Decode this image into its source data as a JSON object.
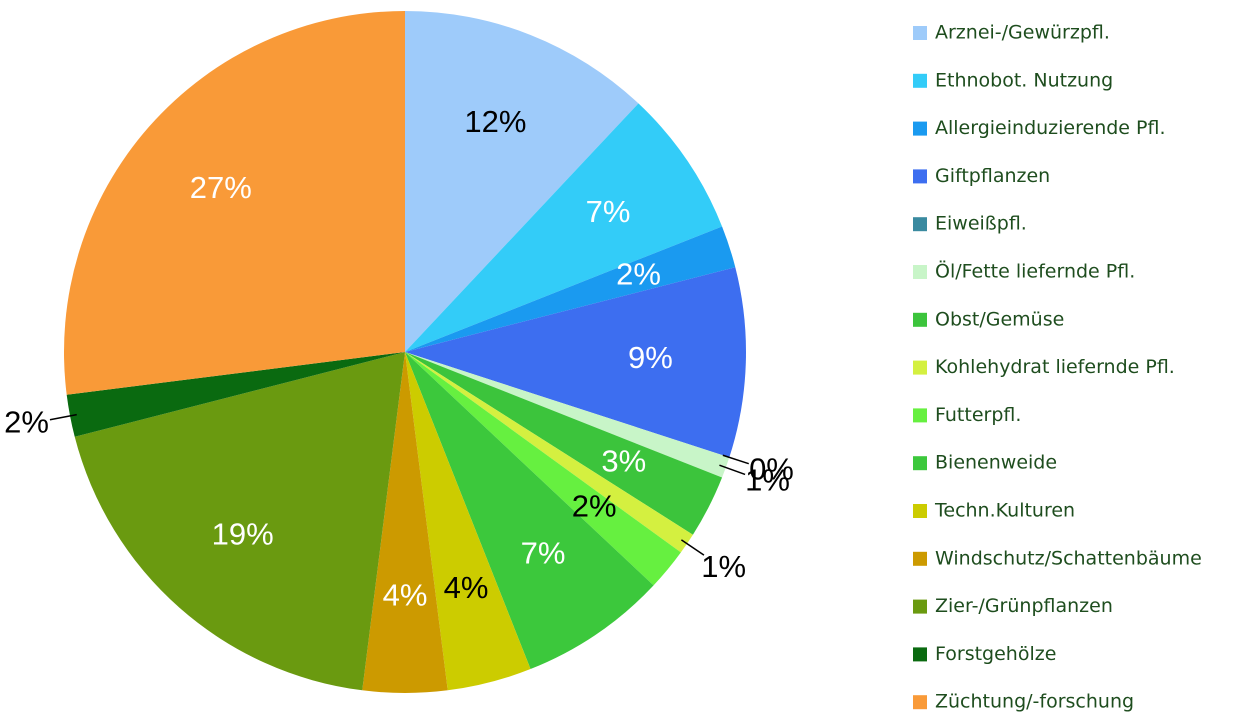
{
  "chart_data": {
    "type": "pie",
    "categories": [
      "Arznei-/Gewürzpfl.",
      "Ethnobot. Nutzung",
      "Allergieinduzierende Pfl.",
      "Giftpflanzen",
      "Eiweißpfl.",
      "Öl/Fette liefernde Pfl.",
      "Obst/Gemüse",
      "Kohlehydrat liefernde Pfl.",
      "Futterpfl.",
      "Bienenweide",
      "Techn.Kulturen",
      "Windschutz/Schattenbäume",
      "Zier-/Grünpflanzen",
      "Forstgehölze",
      "Züchtung/-forschung"
    ],
    "values": [
      12,
      7,
      2,
      9,
      0,
      1,
      3,
      1,
      2,
      7,
      4,
      4,
      19,
      2,
      27
    ],
    "value_labels": [
      "12%",
      "7%",
      "2%",
      "9%",
      "0%",
      "1%",
      "3%",
      "1%",
      "2%",
      "7%",
      "4%",
      "4%",
      "19%",
      "2%",
      "27%"
    ],
    "colors": [
      "#9ecbfa",
      "#33ccf8",
      "#1a9af0",
      "#3d6ef0",
      "#3a8aa0",
      "#c8f5c8",
      "#3cc43c",
      "#d4f040",
      "#66f040",
      "#3cc83c",
      "#cccc00",
      "#cc9a00",
      "#6a9a10",
      "#0a6a10",
      "#f99a38"
    ]
  }
}
